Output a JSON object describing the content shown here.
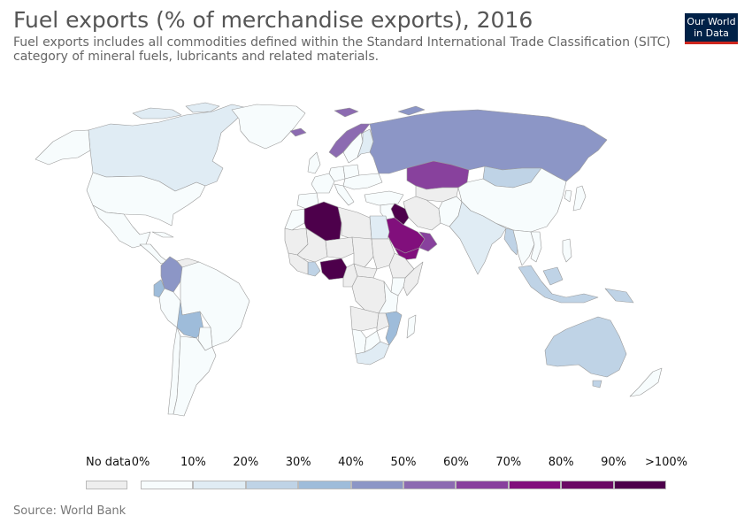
{
  "header": {
    "title": "Fuel exports (% of merchandise exports), 2016",
    "subtitle": "Fuel exports includes all commodities defined within the Standard International Trade Classification (SITC) category of mineral fuels, lubricants and related materials.",
    "logo_line1": "Our World",
    "logo_line2": "in Data"
  },
  "legend": {
    "no_data_label": "No data",
    "no_data_color": "#eeeeee",
    "ticks": [
      "0%",
      "10%",
      "20%",
      "30%",
      "40%",
      "50%",
      "60%",
      "70%",
      "80%",
      "90%",
      ">100%"
    ],
    "colors": [
      "#f7fcfd",
      "#e0ecf4",
      "#bfd3e6",
      "#9ebcda",
      "#8c96c6",
      "#8c6bb1",
      "#88419d",
      "#810f7c",
      "#6a0a64",
      "#4d004b"
    ]
  },
  "map_data": {
    "variable": "Fuel exports (% of merchandise exports)",
    "year": 2016,
    "countries": [
      {
        "name": "Canada",
        "value": 15
      },
      {
        "name": "Greenland",
        "value": 3
      },
      {
        "name": "United States",
        "value": 6
      },
      {
        "name": "Mexico",
        "value": 5
      },
      {
        "name": "Colombia",
        "value": 45
      },
      {
        "name": "Ecuador",
        "value": 35
      },
      {
        "name": "Venezuela",
        "value": null
      },
      {
        "name": "Peru",
        "value": 8
      },
      {
        "name": "Brazil",
        "value": 6
      },
      {
        "name": "Bolivia",
        "value": 35
      },
      {
        "name": "Paraguay",
        "value": 2
      },
      {
        "name": "Chile",
        "value": 2
      },
      {
        "name": "Argentina",
        "value": 3
      },
      {
        "name": "Norway",
        "value": 55
      },
      {
        "name": "Sweden",
        "value": 8
      },
      {
        "name": "Finland",
        "value": 10
      },
      {
        "name": "United Kingdom",
        "value": 8
      },
      {
        "name": "France",
        "value": 3
      },
      {
        "name": "Spain",
        "value": 6
      },
      {
        "name": "Germany",
        "value": 3
      },
      {
        "name": "Italy",
        "value": 5
      },
      {
        "name": "Poland",
        "value": 3
      },
      {
        "name": "Ukraine",
        "value": 4
      },
      {
        "name": "Russia",
        "value": 48
      },
      {
        "name": "Kazakhstan",
        "value": 65
      },
      {
        "name": "Mongolia",
        "value": 25
      },
      {
        "name": "China",
        "value": 2
      },
      {
        "name": "Japan",
        "value": 2
      },
      {
        "name": "Turkey",
        "value": 4
      },
      {
        "name": "Iran",
        "value": null
      },
      {
        "name": "Iraq",
        "value": 99
      },
      {
        "name": "Saudi Arabia",
        "value": 75
      },
      {
        "name": "Oman",
        "value": 60
      },
      {
        "name": "Afghanistan",
        "value": null
      },
      {
        "name": "Pakistan",
        "value": 2
      },
      {
        "name": "India",
        "value": 12
      },
      {
        "name": "Myanmar",
        "value": 25
      },
      {
        "name": "Thailand",
        "value": 5
      },
      {
        "name": "Vietnam",
        "value": 5
      },
      {
        "name": "Indonesia",
        "value": 22
      },
      {
        "name": "Australia",
        "value": 25
      },
      {
        "name": "New Zealand",
        "value": 5
      },
      {
        "name": "Morocco",
        "value": 3
      },
      {
        "name": "Algeria",
        "value": 96
      },
      {
        "name": "Libya",
        "value": null
      },
      {
        "name": "Egypt",
        "value": 15
      },
      {
        "name": "Mauritania",
        "value": null
      },
      {
        "name": "Mali",
        "value": null
      },
      {
        "name": "Niger",
        "value": null
      },
      {
        "name": "Chad",
        "value": null
      },
      {
        "name": "Sudan",
        "value": null
      },
      {
        "name": "Ethiopia",
        "value": null
      },
      {
        "name": "Somalia",
        "value": null
      },
      {
        "name": "Nigeria",
        "value": 95
      },
      {
        "name": "Cameroon",
        "value": null
      },
      {
        "name": "Ghana",
        "value": 25
      },
      {
        "name": "Central African Republic",
        "value": null
      },
      {
        "name": "DR Congo",
        "value": null
      },
      {
        "name": "Angola",
        "value": null
      },
      {
        "name": "Kenya",
        "value": 5
      },
      {
        "name": "Tanzania",
        "value": 5
      },
      {
        "name": "Mozambique",
        "value": 30
      },
      {
        "name": "Zambia",
        "value": null
      },
      {
        "name": "Namibia",
        "value": 2
      },
      {
        "name": "Botswana",
        "value": 2
      },
      {
        "name": "South Africa",
        "value": 10
      },
      {
        "name": "Madagascar",
        "value": 2
      }
    ]
  },
  "source": "Source: World Bank"
}
